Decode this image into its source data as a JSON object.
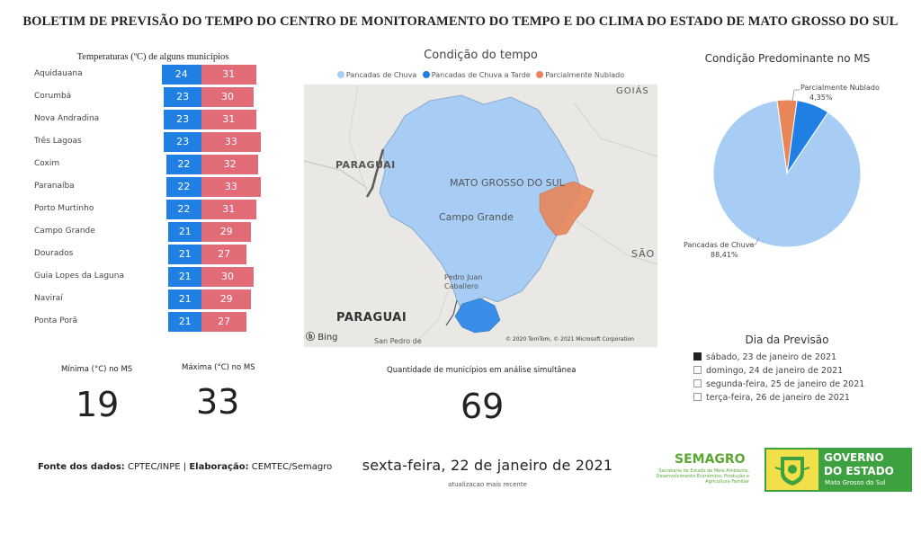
{
  "header": {
    "title": "BOLETIM DE PREVISÃO DO TEMPO DO CENTRO DE MONITORAMENTO DO TEMPO E DO CLIMA DO ESTADO DE MATO GROSSO DO SUL"
  },
  "temperatures": {
    "title": "Temperaturas (ºC) de alguns municípios",
    "colors": {
      "min": "#1f7fe3",
      "max": "#e26b78"
    },
    "rows": [
      {
        "city": "Aquidauana",
        "min": 24,
        "max": 31
      },
      {
        "city": "Corumbá",
        "min": 23,
        "max": 30
      },
      {
        "city": "Nova Andradina",
        "min": 23,
        "max": 31
      },
      {
        "city": "Três Lagoas",
        "min": 23,
        "max": 33
      },
      {
        "city": "Coxim",
        "min": 22,
        "max": 32
      },
      {
        "city": "Paranaíba",
        "min": 22,
        "max": 33
      },
      {
        "city": "Porto Murtinho",
        "min": 22,
        "max": 31
      },
      {
        "city": "Campo Grande",
        "min": 21,
        "max": 29
      },
      {
        "city": "Dourados",
        "min": 21,
        "max": 27
      },
      {
        "city": "Guia Lopes da Laguna",
        "min": 21,
        "max": 30
      },
      {
        "city": "Naviraí",
        "min": 21,
        "max": 29
      },
      {
        "city": "Ponta Porã",
        "min": 21,
        "max": 27
      }
    ]
  },
  "map": {
    "title": "Condição do tempo",
    "legend": [
      {
        "label": "Pancadas de Chuva",
        "color": "#a8cdf5"
      },
      {
        "label": "Pancadas de Chuva a Tarde",
        "color": "#1f7fe3"
      },
      {
        "label": "Parcialmente Nublado",
        "color": "#e8865a"
      }
    ],
    "labels": {
      "goias": "GOIÁS",
      "ms": "MATO GROSSO DO SUL",
      "campo_grande": "Campo Grande",
      "paraguai_top": "PARAGUAI",
      "pedro_juan": "Pedro Juan",
      "caballero": "Caballero",
      "paraguai": "PARAGUAI",
      "sao_paulo": "SÃO P",
      "san_pedro": "San Pedro de",
      "bing": "Bing",
      "copyright": "© 2020 TomTom, © 2021 Microsoft Corporation"
    }
  },
  "pie": {
    "title": "Condição Predominante no MS",
    "slices": [
      {
        "label": "Pancadas de Chuva",
        "percent": 88.41,
        "display": "88,41%",
        "color": "#a8cdf5"
      },
      {
        "label": "Pancadas de Chuva a Tarde",
        "percent": 7.24,
        "display": "",
        "color": "#1f7fe3"
      },
      {
        "label": "Parcialmente Nublado",
        "percent": 4.35,
        "display": "4,35%",
        "color": "#e8865a"
      }
    ]
  },
  "forecast_days": {
    "title": "Dia da Previsão",
    "items": [
      {
        "label": "sábado, 23 de janeiro de 2021",
        "checked": true
      },
      {
        "label": "domingo, 24 de janeiro de 2021",
        "checked": false
      },
      {
        "label": "segunda-feira, 25 de janeiro de 2021",
        "checked": false
      },
      {
        "label": "terça-feira, 26 de janeiro de 2021",
        "checked": false
      }
    ]
  },
  "kpis": {
    "min_label": "Mínima (°C) no MS",
    "min_value": "19",
    "max_label": "Máxima (°C) no MS",
    "max_value": "33",
    "count_label": "Quantidade de municípios em análise simultânea",
    "count_value": "69"
  },
  "footer": {
    "source_label": "Fonte dos dados:",
    "source_value": "CPTEC/INPE",
    "separator": "|",
    "elab_label": "Elaboração:",
    "elab_value": "CEMTEC/Semagro",
    "date": "sexta-feira, 22 de janeiro de 2021",
    "updated": "atualizacao mais recente"
  },
  "logos": {
    "semagro_name": "SEMAGRO",
    "semagro_sub": "Secretaria de Estado de Meio Ambiente, Desenvolvimento Econômico, Produção e Agricultura Familiar",
    "gov_line1": "GOVERNO",
    "gov_line2": "DO ESTADO",
    "gov_line3": "Mato Grosso do Sul"
  }
}
